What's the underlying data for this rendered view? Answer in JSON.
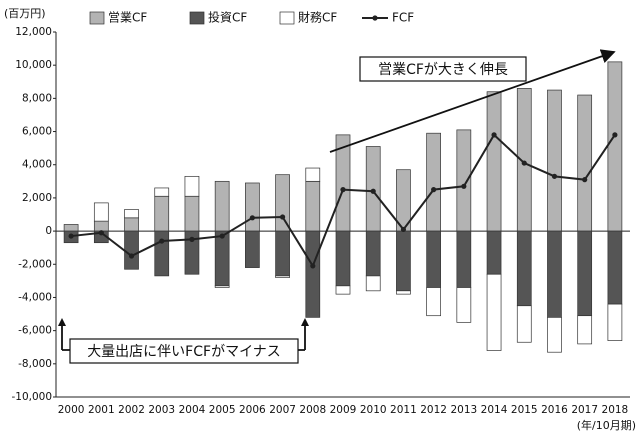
{
  "chart_data": {
    "type": "bar",
    "unit_label": "(百万円)",
    "x_unit_label": "(年/10月期)",
    "categories": [
      "2000",
      "2001",
      "2002",
      "2003",
      "2004",
      "2005",
      "2006",
      "2007",
      "2008",
      "2009",
      "2010",
      "2011",
      "2012",
      "2013",
      "2014",
      "2015",
      "2016",
      "2017",
      "2018"
    ],
    "series": [
      {
        "name": "営業CF",
        "color": "#b3b3b3",
        "values": [
          400,
          600,
          800,
          2100,
          2100,
          3000,
          2900,
          3400,
          3000,
          5800,
          5100,
          3700,
          5900,
          6100,
          8400,
          8600,
          8500,
          8200,
          10200
        ]
      },
      {
        "name": "投資CF",
        "color": "#555555",
        "values": [
          -700,
          -700,
          -2300,
          -2700,
          -2600,
          -3300,
          -2200,
          -2700,
          -5200,
          -3300,
          -2700,
          -3600,
          -3400,
          -3400,
          -2600,
          -4500,
          -5200,
          -5100,
          -4400
        ]
      },
      {
        "name": "財務CF",
        "color": "#ffffff",
        "values": [
          0,
          1100,
          500,
          500,
          1200,
          -100,
          0,
          -100,
          800,
          -500,
          -900,
          -200,
          -1700,
          -2100,
          -4600,
          -2200,
          -2100,
          -1700,
          -2200
        ]
      },
      {
        "name": "FCF",
        "type": "line",
        "color": "#222222",
        "values": [
          -300,
          -100,
          -1500,
          -600,
          -500,
          -300,
          800,
          850,
          -2100,
          2500,
          2400,
          100,
          2500,
          2700,
          5800,
          4100,
          3300,
          3100,
          5800
        ]
      }
    ],
    "ylim": [
      -10000,
      12000
    ],
    "yticks": [
      {
        "value": -10000,
        "label": "-10,000"
      },
      {
        "value": -8000,
        "label": "-8,000"
      },
      {
        "value": -6000,
        "label": "-6,000"
      },
      {
        "value": -4000,
        "label": "-4,000"
      },
      {
        "value": -2000,
        "label": "-2,000"
      },
      0,
      {
        "value": 2000,
        "label": "2,000"
      },
      {
        "value": 4000,
        "label": "4,000"
      },
      {
        "value": 6000,
        "label": "6,000"
      },
      {
        "value": 8000,
        "label": "8,000"
      },
      {
        "value": 10000,
        "label": "10,000"
      },
      {
        "value": 12000,
        "label": "12,000"
      }
    ],
    "grid": false,
    "legend": "top",
    "annotations": [
      "営業CFが大きく伸長",
      "大量出店に伴いFCFがマイナス"
    ]
  }
}
